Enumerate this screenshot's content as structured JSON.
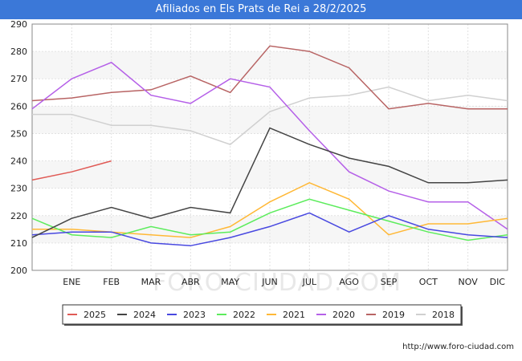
{
  "title": "Afiliados en Els Prats de Rei a 28/2/2025",
  "footer": "http://www.foro-ciudad.com",
  "watermark": "FORO-CIUDAD.COM",
  "chart_data": {
    "type": "line",
    "title": "Afiliados en Els Prats de Rei a 28/2/2025",
    "xlabel": "",
    "ylabel": "",
    "categories": [
      "",
      "ENE",
      "FEB",
      "MAR",
      "ABR",
      "MAY",
      "JUN",
      "JUL",
      "AGO",
      "SEP",
      "OCT",
      "NOV",
      "DIC"
    ],
    "ylim": [
      200,
      290
    ],
    "yticks": [
      200,
      210,
      220,
      230,
      240,
      250,
      260,
      270,
      280,
      290
    ],
    "grid": true,
    "legend_position": "bottom",
    "series": [
      {
        "name": "2025",
        "color": "#e05a55",
        "values": [
          233,
          236,
          240,
          null,
          null,
          null,
          null,
          null,
          null,
          null,
          null,
          null,
          null
        ]
      },
      {
        "name": "2024",
        "color": "#444444",
        "values": [
          212,
          219,
          223,
          219,
          223,
          221,
          252,
          246,
          241,
          238,
          232,
          232,
          233
        ]
      },
      {
        "name": "2023",
        "color": "#4848e0",
        "values": [
          213,
          214,
          214,
          210,
          209,
          212,
          216,
          221,
          214,
          220,
          215,
          213,
          212
        ]
      },
      {
        "name": "2022",
        "color": "#5cec5c",
        "values": [
          219,
          213,
          212,
          216,
          213,
          214,
          221,
          226,
          222,
          218,
          214,
          211,
          213
        ]
      },
      {
        "name": "2021",
        "color": "#ffb836",
        "values": [
          215,
          215,
          214,
          213,
          212,
          216,
          225,
          232,
          226,
          213,
          217,
          217,
          219
        ]
      },
      {
        "name": "2020",
        "color": "#b560e8",
        "values": [
          259,
          270,
          276,
          264,
          261,
          270,
          267,
          251,
          236,
          229,
          225,
          225,
          215
        ]
      },
      {
        "name": "2019",
        "color": "#b86464",
        "values": [
          262,
          263,
          265,
          266,
          271,
          265,
          282,
          280,
          274,
          259,
          261,
          259,
          259
        ]
      },
      {
        "name": "2018",
        "color": "#d0d0d0",
        "values": [
          257,
          257,
          253,
          253,
          251,
          246,
          258,
          263,
          264,
          267,
          262,
          264,
          262
        ]
      }
    ]
  }
}
